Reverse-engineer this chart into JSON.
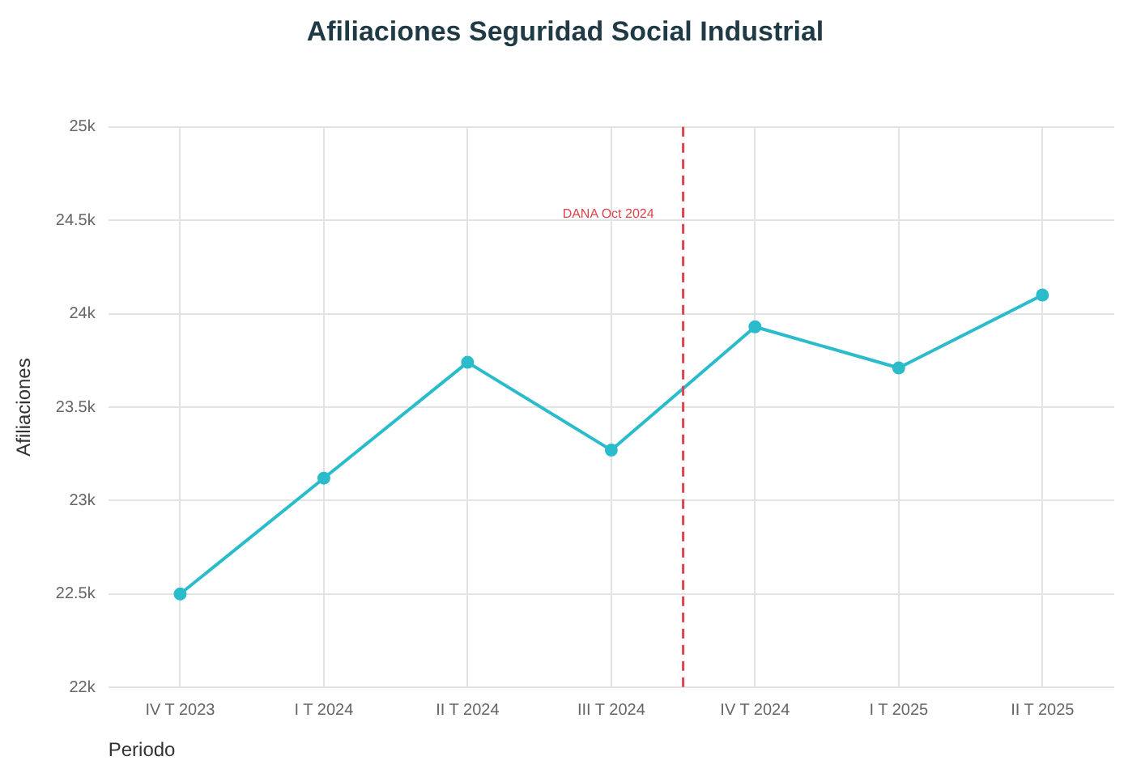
{
  "chart_data": {
    "type": "line",
    "title": "Afiliaciones Seguridad Social Industrial",
    "xlabel": "Periodo",
    "ylabel": "Afiliaciones",
    "categories": [
      "IV T 2023",
      "I T 2024",
      "II T 2024",
      "III T 2024",
      "IV T 2024",
      "I T 2025",
      "II T 2025"
    ],
    "series": [
      {
        "color": "#2bbccb",
        "values": [
          22500,
          23120,
          23740,
          23270,
          23930,
          23710,
          24100
        ]
      }
    ],
    "ylim": [
      22000,
      25000
    ],
    "yticks": [
      {
        "value": 22000,
        "label": "22k"
      },
      {
        "value": 22500,
        "label": "22.5k"
      },
      {
        "value": 23000,
        "label": "23k"
      },
      {
        "value": 23500,
        "label": "23.5k"
      },
      {
        "value": 24000,
        "label": "24k"
      },
      {
        "value": 24500,
        "label": "24.5k"
      },
      {
        "value": 25000,
        "label": "25k"
      }
    ],
    "ref_lines": [
      {
        "axis": "x",
        "value": "IV T 2024",
        "label": "DANA Oct 2024",
        "color": "#e0454f",
        "line_style": "dashed"
      }
    ],
    "grid": true,
    "legend": false,
    "marker": "circle",
    "line_style": "solid"
  }
}
